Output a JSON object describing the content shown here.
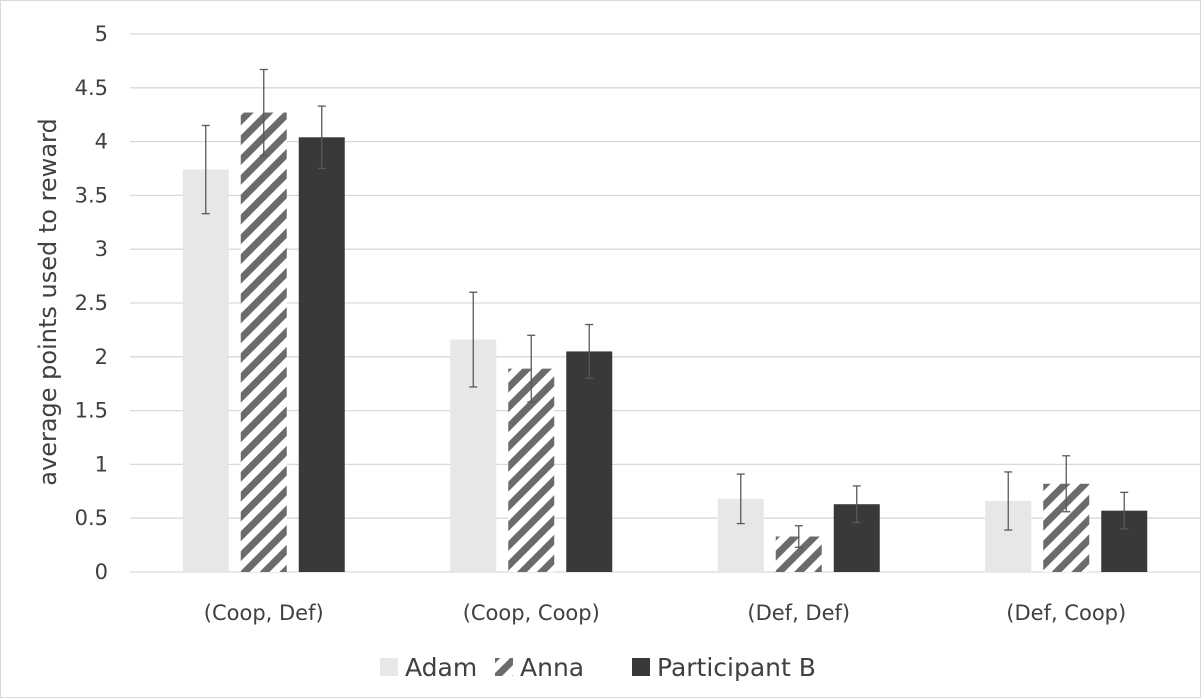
{
  "chart_data": {
    "type": "bar",
    "title": "",
    "xlabel": "",
    "ylabel": "average points used to reward",
    "ylim": [
      0,
      5
    ],
    "yticks": [
      0,
      0.5,
      1,
      1.5,
      2,
      2.5,
      3,
      3.5,
      4,
      4.5,
      5
    ],
    "ytick_labels": [
      "0",
      "0.5",
      "1",
      "1.5",
      "2",
      "2.5",
      "3",
      "3.5",
      "4",
      "4.5",
      "5"
    ],
    "grid": true,
    "legend_position": "bottom",
    "categories": [
      "(Coop, Def)",
      "(Coop, Coop)",
      "(Def, Def)",
      "(Def, Coop)"
    ],
    "series": [
      {
        "name": "Adam",
        "values": [
          3.74,
          2.16,
          0.68,
          0.66
        ],
        "error": [
          0.41,
          0.44,
          0.23,
          0.27
        ],
        "color": "#e7e7e7",
        "pattern": "solid"
      },
      {
        "name": "Anna",
        "values": [
          4.27,
          1.89,
          0.33,
          0.82
        ],
        "error": [
          0.4,
          0.31,
          0.1,
          0.26
        ],
        "color": "#6b6b6b",
        "pattern": "diagonal-hatch"
      },
      {
        "name": "Participant B",
        "values": [
          4.04,
          2.05,
          0.63,
          0.57
        ],
        "error": [
          0.29,
          0.25,
          0.17,
          0.17
        ],
        "color": "#3a3838",
        "pattern": "solid"
      }
    ]
  }
}
